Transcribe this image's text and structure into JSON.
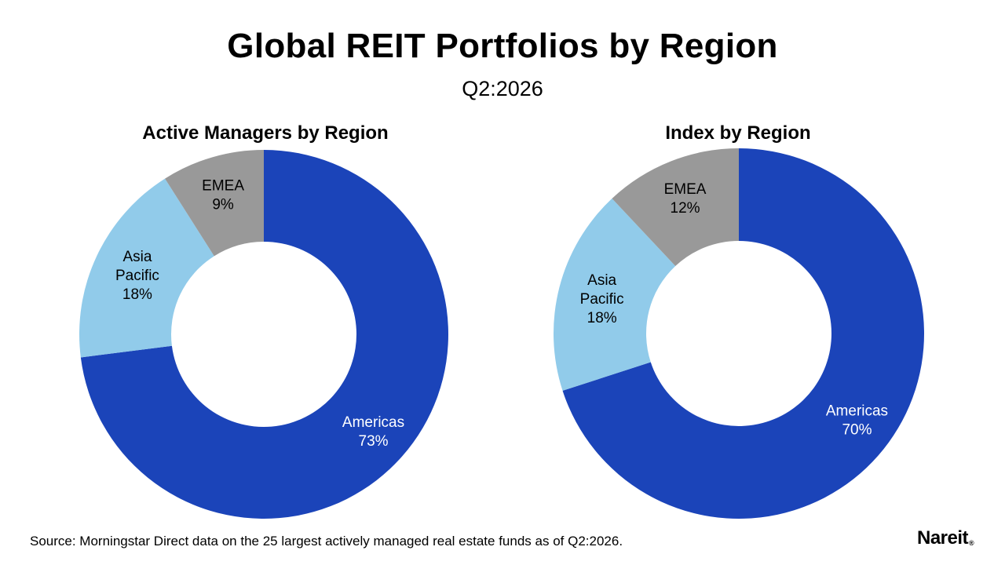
{
  "title": "Global REIT Portfolios by Region",
  "subtitle": "Q2:2026",
  "source": "Source: Morningstar Direct data on the 25 largest actively managed real estate funds as of Q2:2026.",
  "logo": "Nareit",
  "logo_mark": "®",
  "colors": {
    "americas": "#1b44b9",
    "asia_pacific": "#91cbea",
    "emea": "#999999",
    "label_dark": "#000000",
    "label_light": "#ffffff"
  },
  "chart_data": [
    {
      "type": "pie",
      "title": "Active Managers by Region",
      "categories": [
        "Americas",
        "Asia Pacific",
        "EMEA"
      ],
      "labels": [
        [
          "Americas",
          "73%"
        ],
        [
          "Asia",
          "Pacific",
          "18%"
        ],
        [
          "EMEA",
          "9%"
        ]
      ],
      "values": [
        73,
        18,
        9
      ],
      "colors": [
        "#1b44b9",
        "#91cbea",
        "#999999"
      ],
      "label_colors": [
        "#ffffff",
        "#000000",
        "#000000"
      ],
      "donut": true,
      "legend": "none"
    },
    {
      "type": "pie",
      "title": "Index by Region",
      "categories": [
        "Americas",
        "Asia Pacific",
        "EMEA"
      ],
      "labels": [
        [
          "Americas",
          "70%"
        ],
        [
          "Asia",
          "Pacific",
          "18%"
        ],
        [
          "EMEA",
          "12%"
        ]
      ],
      "values": [
        70,
        18,
        12
      ],
      "colors": [
        "#1b44b9",
        "#91cbea",
        "#999999"
      ],
      "label_colors": [
        "#ffffff",
        "#000000",
        "#000000"
      ],
      "donut": true,
      "legend": "none"
    }
  ]
}
